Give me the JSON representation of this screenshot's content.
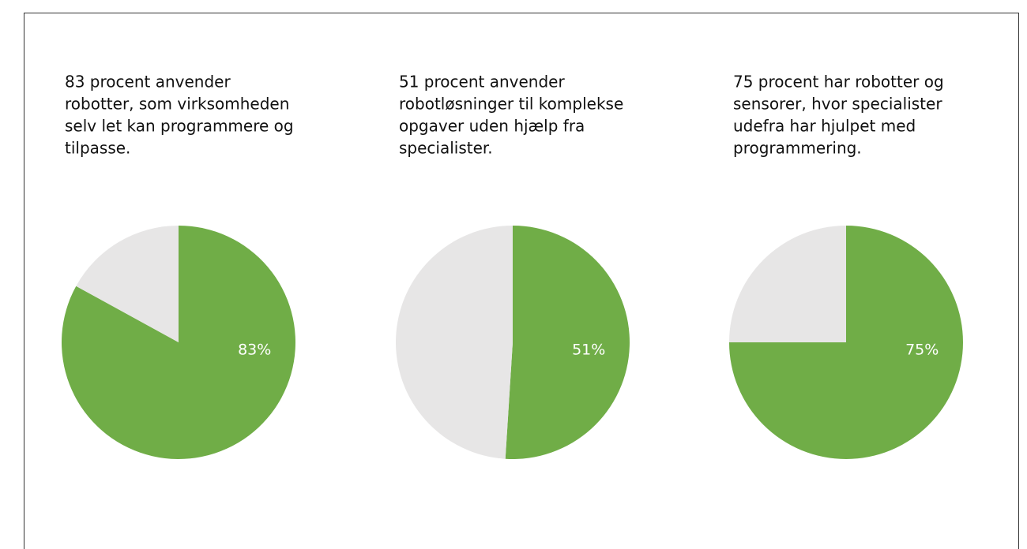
{
  "chart_data": [
    {
      "type": "pie",
      "title": [
        "83 procent anvender",
        "robotter, som virksomheden",
        "selv let kan programmere og",
        "tilpasse."
      ],
      "values": [
        83,
        17
      ],
      "value_labels": [
        "83%",
        null
      ],
      "colors": [
        "#70ad47",
        "#e7e6e6"
      ]
    },
    {
      "type": "pie",
      "title": [
        "51 procent anvender",
        "robotløsninger til  komplekse",
        "opgaver uden hjælp fra",
        "specialister."
      ],
      "values": [
        51,
        49
      ],
      "value_labels": [
        "51%",
        null
      ],
      "colors": [
        "#70ad47",
        "#e7e6e6"
      ]
    },
    {
      "type": "pie",
      "title": [
        "75 procent har robotter og",
        "sensorer, hvor specialister",
        "udefra har hjulpet med",
        "programmering."
      ],
      "values": [
        75,
        25
      ],
      "value_labels": [
        "75%",
        null
      ],
      "colors": [
        "#70ad47",
        "#e7e6e6"
      ]
    }
  ]
}
